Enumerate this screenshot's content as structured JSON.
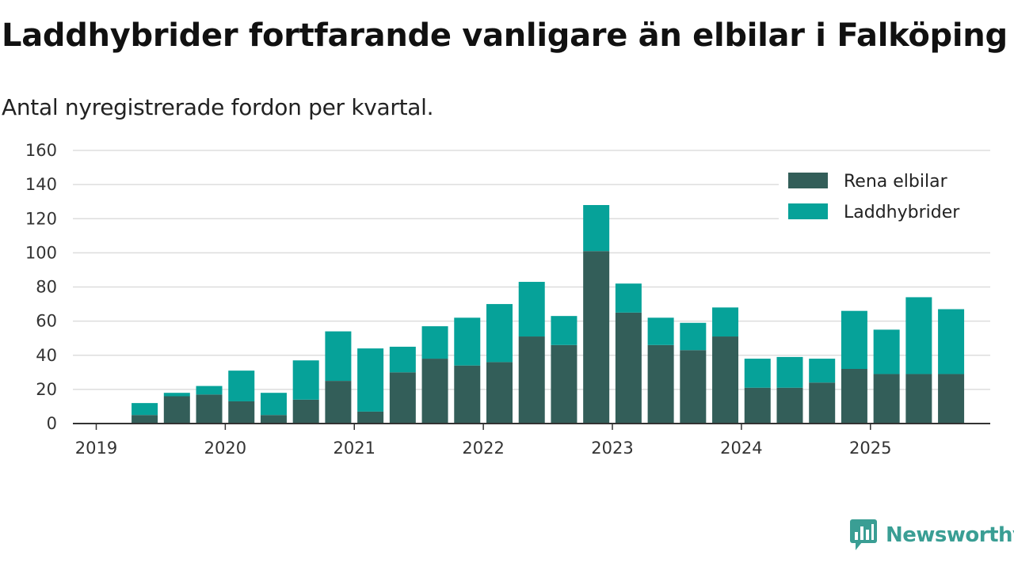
{
  "title": "Laddhybrider fortfarande vanligare än elbilar i Falköping",
  "subtitle": "Antal nyregistrerade fordon per kvartal.",
  "brand": {
    "name": "Newsworthy",
    "icon": "newsworthy-logo-icon"
  },
  "colors": {
    "elbilar": "#335e59",
    "laddhybrider": "#06a299",
    "grid": "#dddddd",
    "axis": "#333333",
    "brand": "#3a9e94"
  },
  "chart_data": {
    "type": "bar",
    "stacked": true,
    "title": "Laddhybrider fortfarande vanligare än elbilar i Falköping",
    "subtitle": "Antal nyregistrerade fordon per kvartal.",
    "xlabel": "",
    "ylabel": "",
    "ylim": [
      0,
      160
    ],
    "yticks": [
      0,
      20,
      40,
      60,
      80,
      100,
      120,
      140,
      160
    ],
    "xticks": [
      "2019",
      "2020",
      "2021",
      "2022",
      "2023",
      "2024",
      "2025"
    ],
    "categories": [
      "2019 Q2",
      "2019 Q3",
      "2019 Q4",
      "2020 Q1",
      "2020 Q2",
      "2020 Q3",
      "2020 Q4",
      "2021 Q1",
      "2021 Q2",
      "2021 Q3",
      "2021 Q4",
      "2022 Q1",
      "2022 Q2",
      "2022 Q3",
      "2022 Q4",
      "2023 Q1",
      "2023 Q2",
      "2023 Q3",
      "2023 Q4",
      "2024 Q1",
      "2024 Q2",
      "2024 Q3",
      "2024 Q4",
      "2025 Q1",
      "2025 Q2",
      "2025 Q3"
    ],
    "series": [
      {
        "name": "Rena elbilar",
        "values": [
          5,
          16,
          17,
          13,
          5,
          14,
          25,
          7,
          30,
          38,
          34,
          36,
          51,
          46,
          101,
          65,
          46,
          43,
          51,
          21,
          21,
          24,
          32,
          29,
          29,
          29
        ]
      },
      {
        "name": "Laddhybrider",
        "values": [
          7,
          2,
          5,
          18,
          13,
          23,
          29,
          37,
          15,
          19,
          28,
          34,
          32,
          17,
          27,
          17,
          16,
          16,
          17,
          17,
          18,
          14,
          34,
          26,
          45,
          38
        ]
      }
    ],
    "legend": [
      "Rena elbilar",
      "Laddhybrider"
    ],
    "legend_position": "top-right",
    "grid": true
  }
}
